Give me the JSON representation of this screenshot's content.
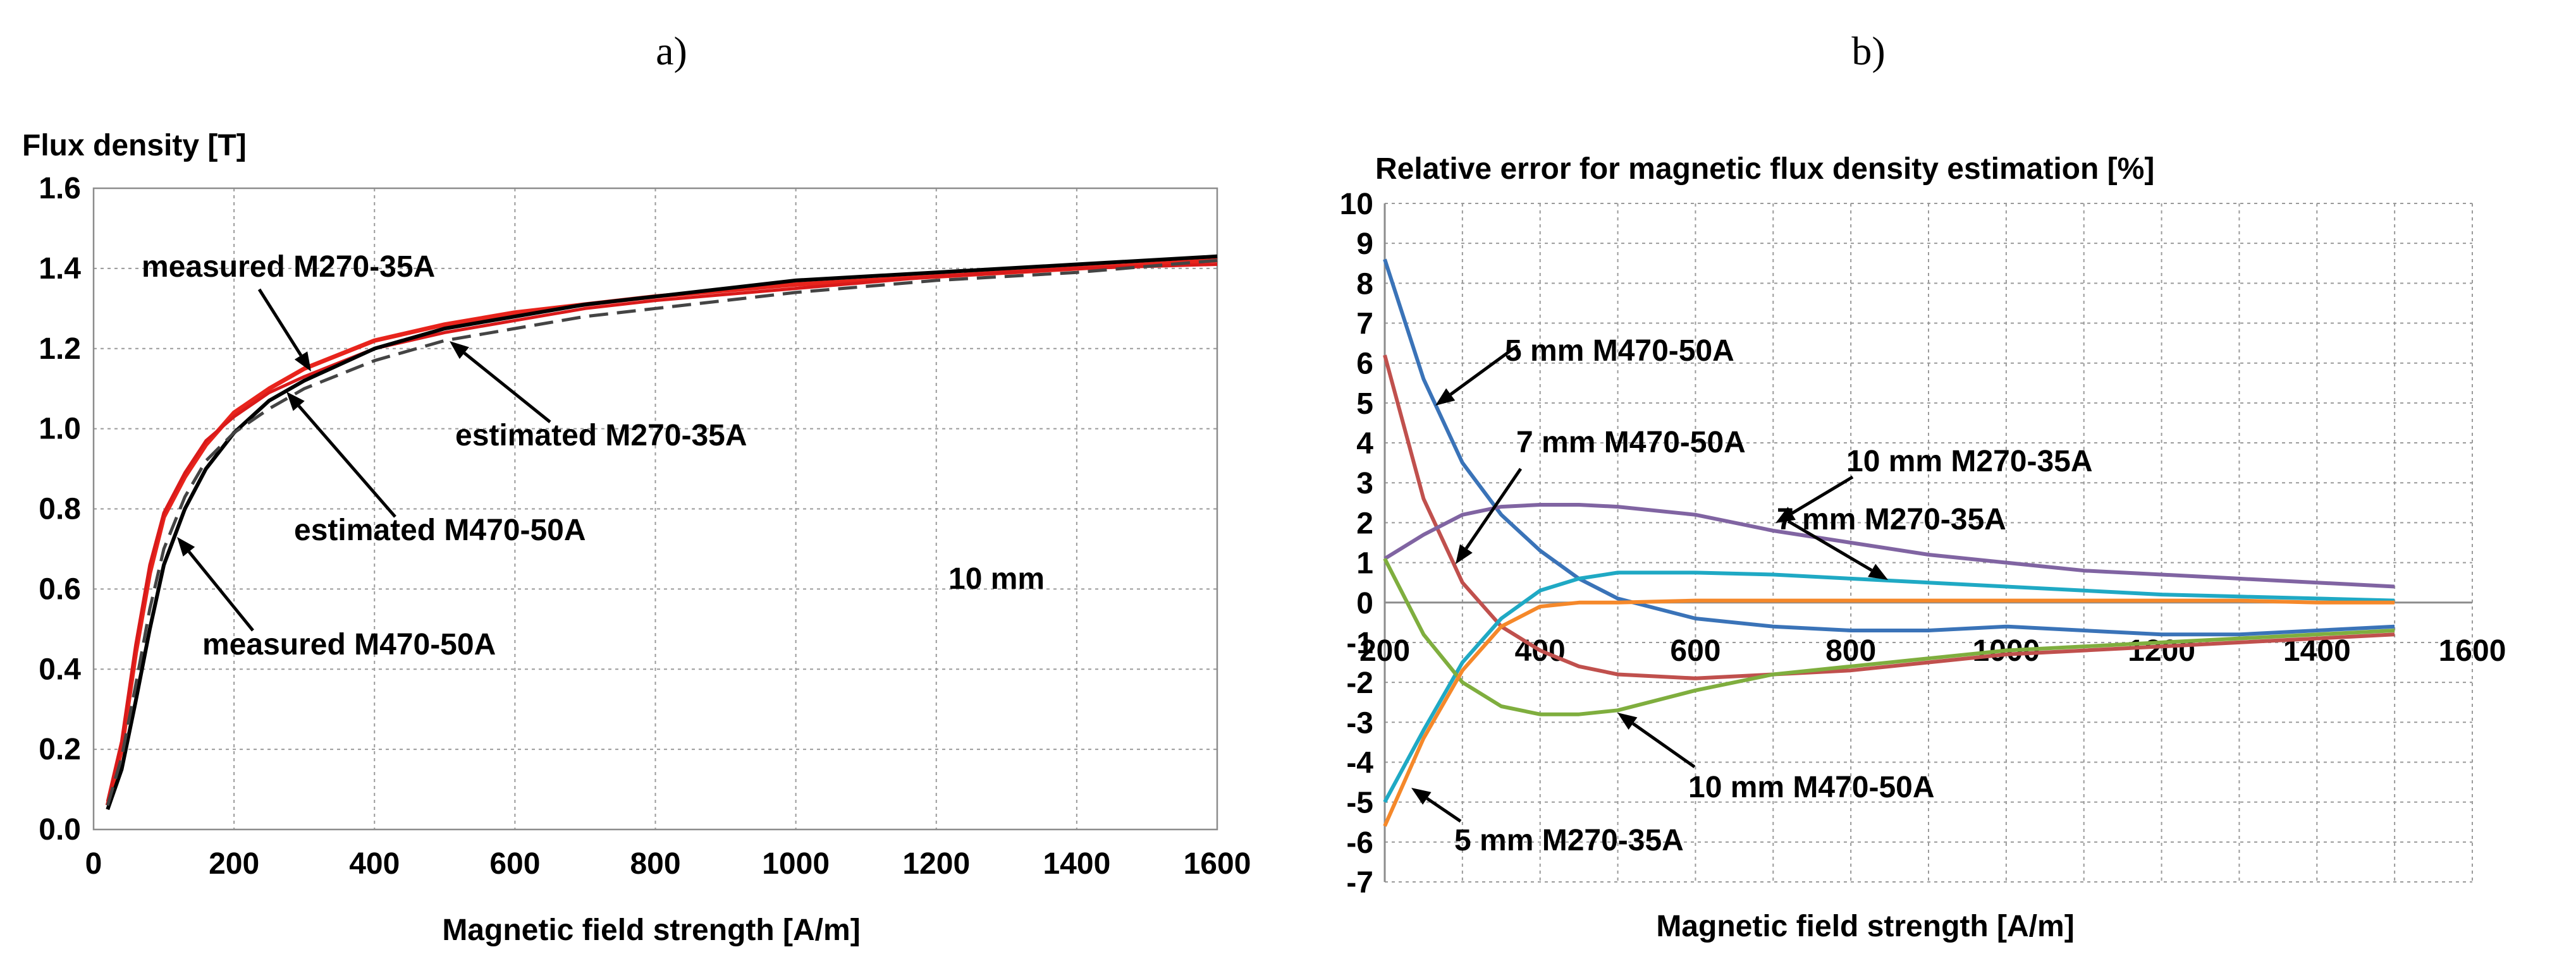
{
  "panels": {
    "a": "a)",
    "b": "b)"
  },
  "chart_data": [
    {
      "type": "line",
      "ylabel": "Flux density [T]",
      "xlabel": "Magnetic field strength [A/m]",
      "xlim": [
        0,
        1600
      ],
      "ylim": [
        0.0,
        1.6
      ],
      "xticks": [
        "0",
        "200",
        "400",
        "600",
        "800",
        "1000",
        "1200",
        "1400",
        "1600"
      ],
      "yticks": [
        "0.0",
        "0.2",
        "0.4",
        "0.6",
        "0.8",
        "1.0",
        "1.2",
        "1.4",
        "1.6"
      ],
      "grid": true,
      "annotation_text": "10 mm",
      "colors": {
        "measured_M270": "#e8241c",
        "estimated_M270": "#d91a1a",
        "measured_M470": "#000000",
        "estimated_M470": "#444444"
      },
      "series": [
        {
          "name": "measured M270-35A",
          "x": [
            20,
            40,
            60,
            80,
            100,
            130,
            160,
            200,
            250,
            300,
            400,
            500,
            600,
            700,
            800,
            1000,
            1200,
            1400,
            1600
          ],
          "y": [
            0.06,
            0.2,
            0.44,
            0.64,
            0.78,
            0.88,
            0.96,
            1.04,
            1.1,
            1.15,
            1.22,
            1.26,
            1.29,
            1.31,
            1.33,
            1.36,
            1.38,
            1.4,
            1.42
          ]
        },
        {
          "name": "estimated M270-35A",
          "x": [
            20,
            40,
            60,
            80,
            100,
            130,
            160,
            200,
            250,
            300,
            400,
            500,
            600,
            700,
            800,
            1000,
            1200,
            1400,
            1600
          ],
          "y": [
            0.07,
            0.22,
            0.46,
            0.66,
            0.79,
            0.89,
            0.97,
            1.03,
            1.09,
            1.13,
            1.2,
            1.24,
            1.27,
            1.3,
            1.32,
            1.35,
            1.38,
            1.4,
            1.41
          ]
        },
        {
          "name": "measured M470-50A",
          "x": [
            20,
            40,
            60,
            80,
            100,
            130,
            160,
            200,
            250,
            300,
            400,
            500,
            600,
            700,
            800,
            1000,
            1200,
            1400,
            1600
          ],
          "y": [
            0.05,
            0.15,
            0.32,
            0.5,
            0.66,
            0.8,
            0.9,
            0.99,
            1.07,
            1.12,
            1.2,
            1.25,
            1.28,
            1.31,
            1.33,
            1.37,
            1.39,
            1.41,
            1.43
          ]
        },
        {
          "name": "estimated M470-50A",
          "x": [
            20,
            40,
            60,
            80,
            100,
            130,
            160,
            200,
            250,
            300,
            400,
            500,
            600,
            700,
            800,
            1000,
            1200,
            1400,
            1600
          ],
          "y": [
            0.06,
            0.18,
            0.36,
            0.55,
            0.7,
            0.83,
            0.92,
            0.99,
            1.05,
            1.1,
            1.17,
            1.22,
            1.25,
            1.28,
            1.3,
            1.34,
            1.37,
            1.39,
            1.42
          ]
        }
      ],
      "annotations": [
        {
          "text": "measured M270-35A"
        },
        {
          "text": "estimated M270-35A"
        },
        {
          "text": "estimated M470-50A"
        },
        {
          "text": "measured M470-50A"
        }
      ]
    },
    {
      "type": "line",
      "title": "Relative error for magnetic flux density estimation [%]",
      "xlabel": "Magnetic field strength [A/m]",
      "xlim": [
        200,
        1600
      ],
      "ylim": [
        -7,
        10
      ],
      "xticks": [
        "200",
        "400",
        "600",
        "800",
        "1000",
        "1200",
        "1400",
        "1600"
      ],
      "yticks": [
        "10",
        "9",
        "8",
        "7",
        "6",
        "5",
        "4",
        "3",
        "2",
        "1",
        "0",
        "-1",
        "-2",
        "-3",
        "-4",
        "-5",
        "-6",
        "-7"
      ],
      "grid": true,
      "series": [
        {
          "name": "5 mm M470-50A",
          "color": "#3a73b8",
          "x": [
            200,
            250,
            300,
            350,
            400,
            450,
            500,
            600,
            700,
            800,
            900,
            1000,
            1100,
            1200,
            1300,
            1400,
            1500
          ],
          "y": [
            8.6,
            5.6,
            3.5,
            2.2,
            1.3,
            0.6,
            0.1,
            -0.4,
            -0.6,
            -0.7,
            -0.7,
            -0.6,
            -0.7,
            -0.8,
            -0.8,
            -0.7,
            -0.6
          ]
        },
        {
          "name": "7 mm M470-50A",
          "color": "#c0504d",
          "x": [
            200,
            250,
            300,
            350,
            400,
            450,
            500,
            600,
            700,
            800,
            900,
            1000,
            1100,
            1200,
            1300,
            1400,
            1500
          ],
          "y": [
            6.2,
            2.6,
            0.5,
            -0.6,
            -1.2,
            -1.6,
            -1.8,
            -1.9,
            -1.8,
            -1.7,
            -1.5,
            -1.3,
            -1.2,
            -1.1,
            -1.0,
            -0.9,
            -0.8
          ]
        },
        {
          "name": "10 mm M270-35A",
          "color": "#8064a2",
          "x": [
            200,
            250,
            300,
            350,
            400,
            450,
            500,
            600,
            700,
            800,
            900,
            1000,
            1100,
            1200,
            1300,
            1400,
            1500
          ],
          "y": [
            1.1,
            1.7,
            2.2,
            2.4,
            2.45,
            2.45,
            2.4,
            2.2,
            1.8,
            1.5,
            1.2,
            1.0,
            0.8,
            0.7,
            0.6,
            0.5,
            0.4
          ]
        },
        {
          "name": "7 mm M270-35A",
          "color": "#1fa9c4",
          "x": [
            200,
            250,
            300,
            350,
            400,
            450,
            500,
            600,
            700,
            800,
            900,
            1000,
            1100,
            1200,
            1300,
            1400,
            1500
          ],
          "y": [
            -5.0,
            -3.2,
            -1.5,
            -0.4,
            0.3,
            0.6,
            0.75,
            0.75,
            0.7,
            0.6,
            0.5,
            0.4,
            0.3,
            0.2,
            0.15,
            0.1,
            0.05
          ]
        },
        {
          "name": "10 mm M470-50A",
          "color": "#7fae3e",
          "x": [
            200,
            250,
            300,
            350,
            400,
            450,
            500,
            600,
            700,
            800,
            900,
            1000,
            1100,
            1200,
            1300,
            1400,
            1500
          ],
          "y": [
            1.1,
            -0.8,
            -2.0,
            -2.6,
            -2.8,
            -2.8,
            -2.7,
            -2.2,
            -1.8,
            -1.6,
            -1.4,
            -1.2,
            -1.1,
            -1.0,
            -0.9,
            -0.8,
            -0.7
          ]
        },
        {
          "name": "5 mm M270-35A",
          "color": "#f5882a",
          "x": [
            200,
            250,
            300,
            350,
            400,
            450,
            500,
            600,
            700,
            800,
            900,
            1000,
            1100,
            1200,
            1300,
            1400,
            1500
          ],
          "y": [
            -5.6,
            -3.4,
            -1.7,
            -0.6,
            -0.1,
            0.0,
            0.0,
            0.05,
            0.05,
            0.05,
            0.05,
            0.05,
            0.05,
            0.05,
            0.05,
            0.0,
            0.0
          ]
        }
      ],
      "annotations": [
        {
          "text": "5 mm M470-50A"
        },
        {
          "text": "7 mm M470-50A"
        },
        {
          "text": "10 mm M270-35A"
        },
        {
          "text": "7 mm M270-35A"
        },
        {
          "text": "10 mm M470-50A"
        },
        {
          "text": "5 mm M270-35A"
        }
      ]
    }
  ]
}
